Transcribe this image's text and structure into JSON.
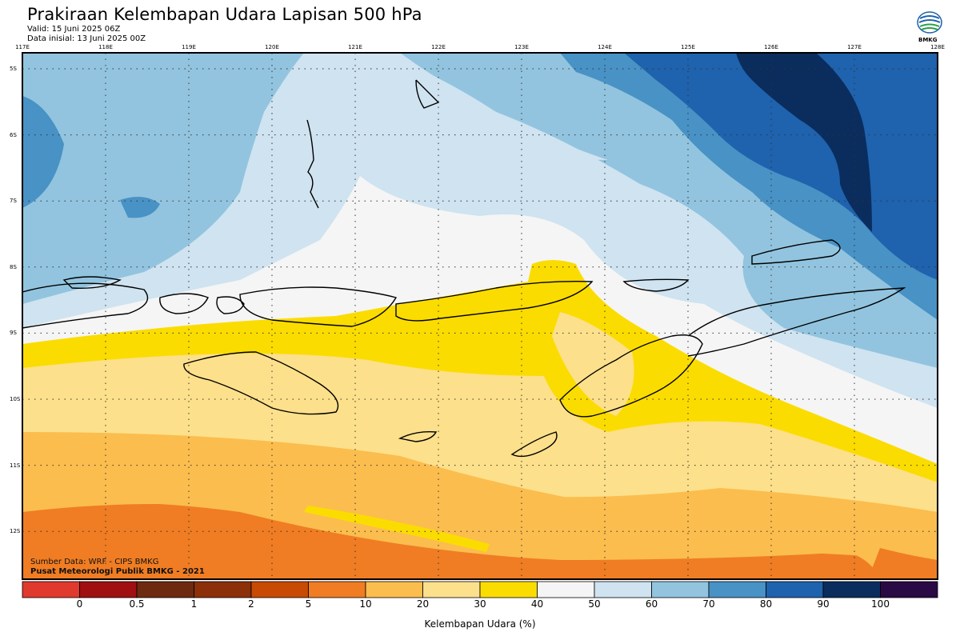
{
  "header": {
    "title": "Prakiraan Kelembapan Udara Lapisan 500 hPa",
    "valid": "Valid: 15 Juni 2025 06Z",
    "init": "Data inisial: 13 Juni 2025 00Z"
  },
  "logo": {
    "icon": "bmkg-logo-icon",
    "text": "BMKG"
  },
  "credits": {
    "source": "Sumber Data: WRF - CIPS BMKG",
    "org": "Pusat Meteorologi Publik BMKG - 2021"
  },
  "axes": {
    "lon_labels": [
      "117E",
      "118E",
      "119E",
      "120E",
      "121E",
      "122E",
      "123E",
      "124E",
      "125E",
      "126E",
      "127E",
      "128E"
    ],
    "lat_labels": [
      "5S",
      "6S",
      "7S",
      "8S",
      "9S",
      "10S",
      "11S",
      "12S"
    ]
  },
  "legend": {
    "title": "Kelembapan Udara (%)",
    "ticks": [
      "0",
      "0.5",
      "1",
      "2",
      "5",
      "10",
      "20",
      "30",
      "40",
      "50",
      "60",
      "70",
      "80",
      "90",
      "100"
    ],
    "colors": [
      "#e03a2e",
      "#a01010",
      "#6e2a10",
      "#8b3008",
      "#c84a05",
      "#f07d23",
      "#fbbd4e",
      "#fde08b",
      "#fbdc00",
      "#f5f5f5",
      "#cfe3f0",
      "#92c4df",
      "#4892c5",
      "#1f62ad",
      "#0a2d5e",
      "#2a0a44"
    ]
  },
  "chart_data": {
    "type": "heatmap",
    "variable": "Kelembapan Udara (%)",
    "level": "500 hPa",
    "lon_range": [
      117,
      128
    ],
    "lat_range": [
      -4.8,
      -12.8
    ],
    "legend_bins": [
      0,
      0.5,
      1,
      2,
      5,
      10,
      20,
      30,
      40,
      50,
      60,
      70,
      80,
      90,
      100
    ]
  },
  "colors": {
    "frame": "#000000",
    "coast": "#000000"
  }
}
